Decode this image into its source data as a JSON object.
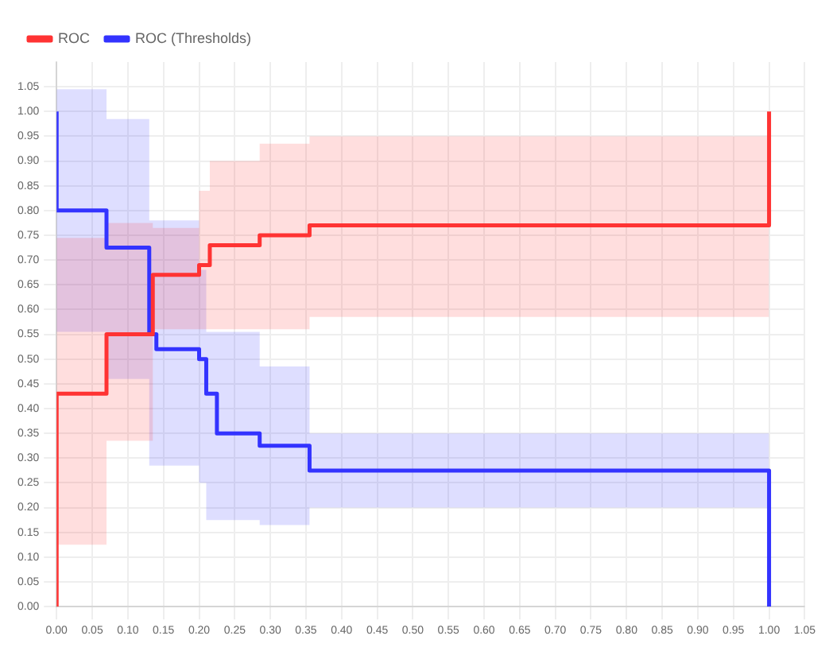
{
  "chart_data": {
    "type": "step",
    "series": [
      {
        "name": "ROC",
        "color": "#ff3333",
        "x": [
          0,
          0,
          0.07,
          0.135,
          0.2,
          0.215,
          0.285,
          0.355,
          1.0
        ],
        "values": [
          0,
          0.43,
          0.55,
          0.67,
          0.69,
          0.73,
          0.75,
          0.77,
          1.0
        ],
        "lower": [
          0.125,
          0.125,
          0.335,
          0.56,
          0.56,
          0.56,
          0.56,
          0.585,
          0.585
        ],
        "upper": [
          0.745,
          0.745,
          0.775,
          0.765,
          0.84,
          0.9,
          0.935,
          0.95,
          0.95
        ]
      },
      {
        "name": "ROC (Thresholds)",
        "color": "#3333ff",
        "x": [
          0,
          0,
          0.07,
          0.13,
          0.14,
          0.2,
          0.21,
          0.225,
          0.285,
          0.355,
          1.0
        ],
        "values": [
          1.0,
          0.8,
          0.725,
          0.55,
          0.52,
          0.5,
          0.43,
          0.35,
          0.325,
          0.275,
          0
        ],
        "lower": [
          0.555,
          0.555,
          0.46,
          0.285,
          0.285,
          0.25,
          0.175,
          0.175,
          0.165,
          0.2,
          0.2
        ],
        "upper": [
          1.045,
          1.045,
          0.985,
          0.78,
          0.78,
          0.68,
          0.555,
          0.555,
          0.485,
          0.35,
          0.35
        ]
      }
    ],
    "xlim": [
      0,
      1.05
    ],
    "xticks": [
      {
        "value": 0,
        "label": "0.00"
      },
      0.05,
      {
        "value": 0.1,
        "label": "0.10"
      },
      0.15,
      {
        "value": 0.2,
        "label": "0.20"
      },
      0.25,
      {
        "value": 0.3,
        "label": "0.30"
      },
      0.35,
      {
        "value": 0.4,
        "label": "0.40"
      },
      0.45,
      {
        "value": 0.5,
        "label": "0.50"
      },
      0.55,
      {
        "value": 0.6,
        "label": "0.60"
      },
      0.65,
      {
        "value": 0.7,
        "label": "0.70"
      },
      0.75,
      {
        "value": 0.8,
        "label": "0.80"
      },
      0.85,
      {
        "value": 0.9,
        "label": "0.90"
      },
      0.95,
      {
        "value": 1.0,
        "label": "1.00"
      },
      1.05
    ],
    "ylim": [
      0,
      1.1
    ],
    "yticks": [
      {
        "value": 0,
        "label": "0.00"
      },
      0.05,
      {
        "value": 0.1,
        "label": "0.10"
      },
      0.15,
      {
        "value": 0.2,
        "label": "0.20"
      },
      0.25,
      {
        "value": 0.3,
        "label": "0.30"
      },
      0.35,
      {
        "value": 0.4,
        "label": "0.40"
      },
      0.45,
      {
        "value": 0.5,
        "label": "0.50"
      },
      0.55,
      {
        "value": 0.6,
        "label": "0.60"
      },
      0.65,
      {
        "value": 0.7,
        "label": "0.70"
      },
      0.75,
      {
        "value": 0.8,
        "label": "0.80"
      },
      0.85,
      {
        "value": 0.9,
        "label": "0.90"
      },
      0.95,
      {
        "value": 1.0,
        "label": "1.00"
      },
      1.05
    ],
    "grid": true,
    "legend": "top left",
    "marker": "none",
    "line_style": "solid"
  }
}
